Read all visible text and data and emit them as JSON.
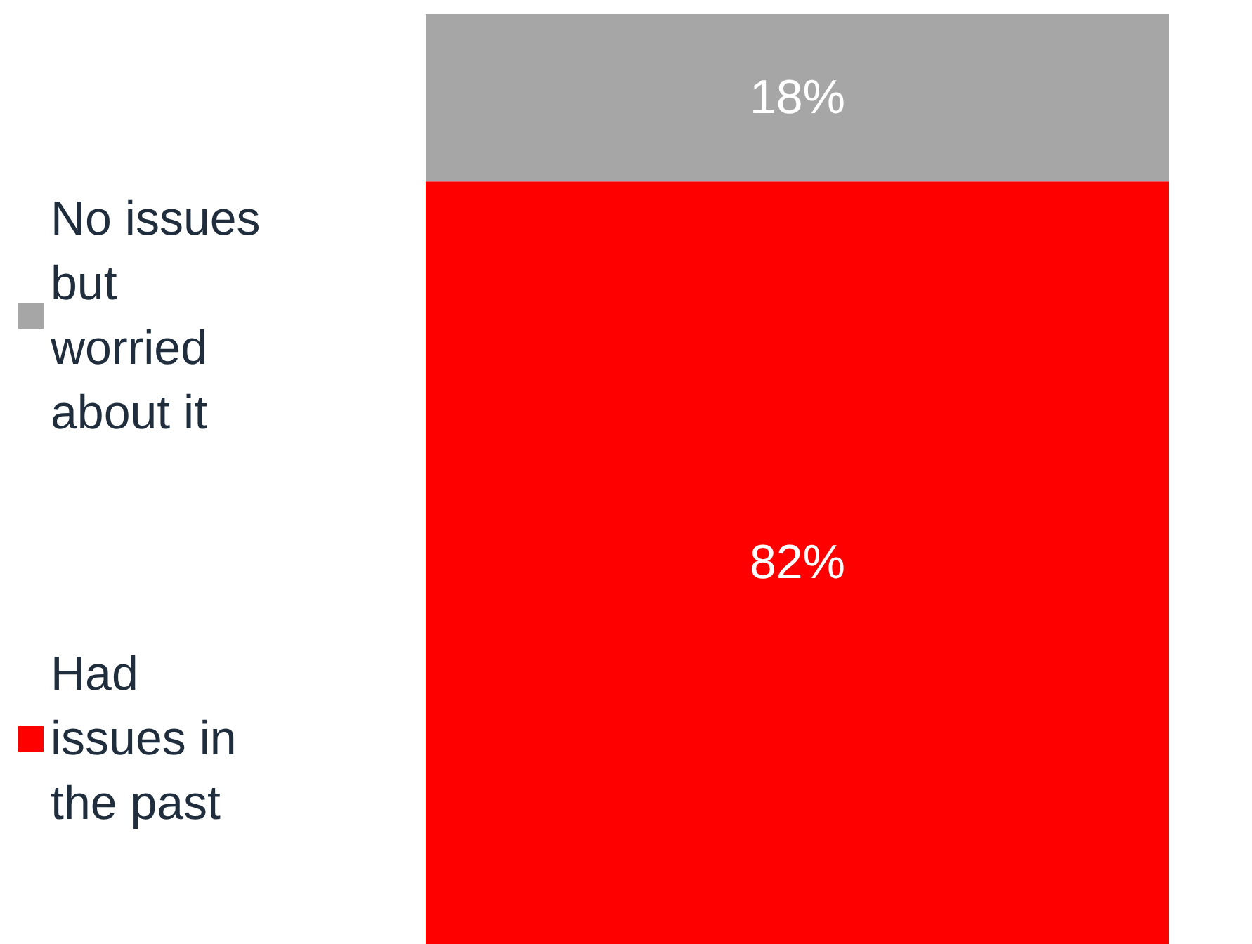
{
  "chart_data": {
    "type": "bar",
    "stacked": true,
    "categories": [
      null
    ],
    "series": [
      {
        "name": "Had issues in the past",
        "color": "#ff0000",
        "values": [
          82
        ],
        "value_labels": [
          "82%"
        ]
      },
      {
        "name": "No issues but worried about it",
        "color": "#a6a6a6",
        "values": [
          18
        ],
        "value_labels": [
          "18%"
        ]
      }
    ],
    "ylim": [
      0,
      100
    ],
    "grid": false,
    "legend": "left"
  }
}
